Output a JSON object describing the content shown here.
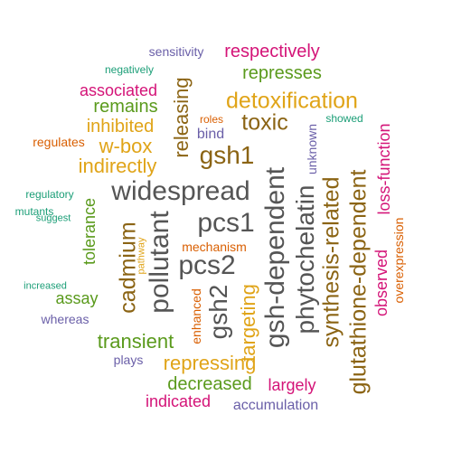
{
  "palette": {
    "orange": "#e0a418",
    "brown": "#8b6414",
    "green": "#5a9a1c",
    "teal": "#1b9e77",
    "red_orange": "#d95f02",
    "purple": "#6a5fa8",
    "magenta": "#d41478",
    "gray": "#555555"
  },
  "words": [
    {
      "text": "sensitivity",
      "color": "purple"
    },
    {
      "text": "respectively",
      "color": "magenta"
    },
    {
      "text": "negatively",
      "color": "teal"
    },
    {
      "text": "represses",
      "color": "green"
    },
    {
      "text": "associated",
      "color": "magenta"
    },
    {
      "text": "releasing",
      "color": "brown"
    },
    {
      "text": "detoxification",
      "color": "orange"
    },
    {
      "text": "remains",
      "color": "green"
    },
    {
      "text": "roles",
      "color": "red_orange"
    },
    {
      "text": "toxic",
      "color": "brown"
    },
    {
      "text": "showed",
      "color": "teal"
    },
    {
      "text": "inhibited",
      "color": "orange"
    },
    {
      "text": "bind",
      "color": "purple"
    },
    {
      "text": "unknown",
      "color": "purple"
    },
    {
      "text": "loss-function",
      "color": "magenta"
    },
    {
      "text": "regulates",
      "color": "red_orange"
    },
    {
      "text": "w-box",
      "color": "orange"
    },
    {
      "text": "gsh1",
      "color": "brown"
    },
    {
      "text": "indirectly",
      "color": "orange"
    },
    {
      "text": "widespread",
      "color": "gray"
    },
    {
      "text": "regulatory",
      "color": "teal"
    },
    {
      "text": "tolerance",
      "color": "green"
    },
    {
      "text": "mutants",
      "color": "teal"
    },
    {
      "text": "suggest",
      "color": "teal"
    },
    {
      "text": "gsh-dependent",
      "color": "gray"
    },
    {
      "text": "phytochelatin",
      "color": "gray"
    },
    {
      "text": "synthesis-related",
      "color": "brown"
    },
    {
      "text": "glutathione-dependent",
      "color": "brown"
    },
    {
      "text": "observed",
      "color": "magenta"
    },
    {
      "text": "overexpression",
      "color": "red_orange"
    },
    {
      "text": "pcs1",
      "color": "gray"
    },
    {
      "text": "cadmium",
      "color": "brown"
    },
    {
      "text": "pollutant",
      "color": "gray"
    },
    {
      "text": "pathway",
      "color": "orange"
    },
    {
      "text": "mechanism",
      "color": "red_orange"
    },
    {
      "text": "pcs2",
      "color": "gray"
    },
    {
      "text": "increased",
      "color": "teal"
    },
    {
      "text": "assay",
      "color": "green"
    },
    {
      "text": "enhanced",
      "color": "red_orange"
    },
    {
      "text": "gsh2",
      "color": "gray"
    },
    {
      "text": "targeting",
      "color": "orange"
    },
    {
      "text": "whereas",
      "color": "purple"
    },
    {
      "text": "transient",
      "color": "green"
    },
    {
      "text": "plays",
      "color": "purple"
    },
    {
      "text": "repressing",
      "color": "orange"
    },
    {
      "text": "decreased",
      "color": "green"
    },
    {
      "text": "largely",
      "color": "magenta"
    },
    {
      "text": "indicated",
      "color": "magenta"
    },
    {
      "text": "accumulation",
      "color": "purple"
    }
  ]
}
